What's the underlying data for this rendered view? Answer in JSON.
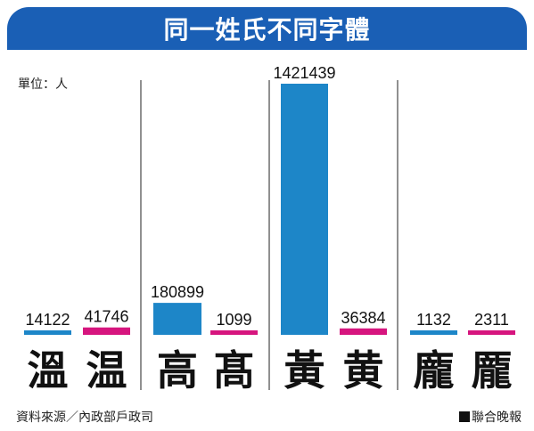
{
  "header": {
    "title": "同一姓氏不同字體"
  },
  "unit_label": "單位：人",
  "footer": {
    "source": "資料來源／內政部戶政司",
    "credit": "聯合晚報"
  },
  "colors": {
    "banner": "#1a5fb5",
    "blue": "#1d86c8",
    "magenta": "#d6157e",
    "divider": "#222222"
  },
  "chart_data": {
    "type": "bar",
    "categories": [
      "溫",
      "温",
      "高",
      "髙",
      "黃",
      "黄",
      "龐",
      "龎"
    ],
    "values": [
      14122,
      41746,
      180899,
      1099,
      1421439,
      36384,
      1132,
      2311
    ],
    "bar_colors": [
      "blue",
      "magenta",
      "blue",
      "magenta",
      "blue",
      "magenta",
      "blue",
      "magenta"
    ],
    "groups": 4,
    "title": "同一姓氏不同字體",
    "ylabel": "單位：人",
    "grid": false,
    "legend": "none"
  }
}
